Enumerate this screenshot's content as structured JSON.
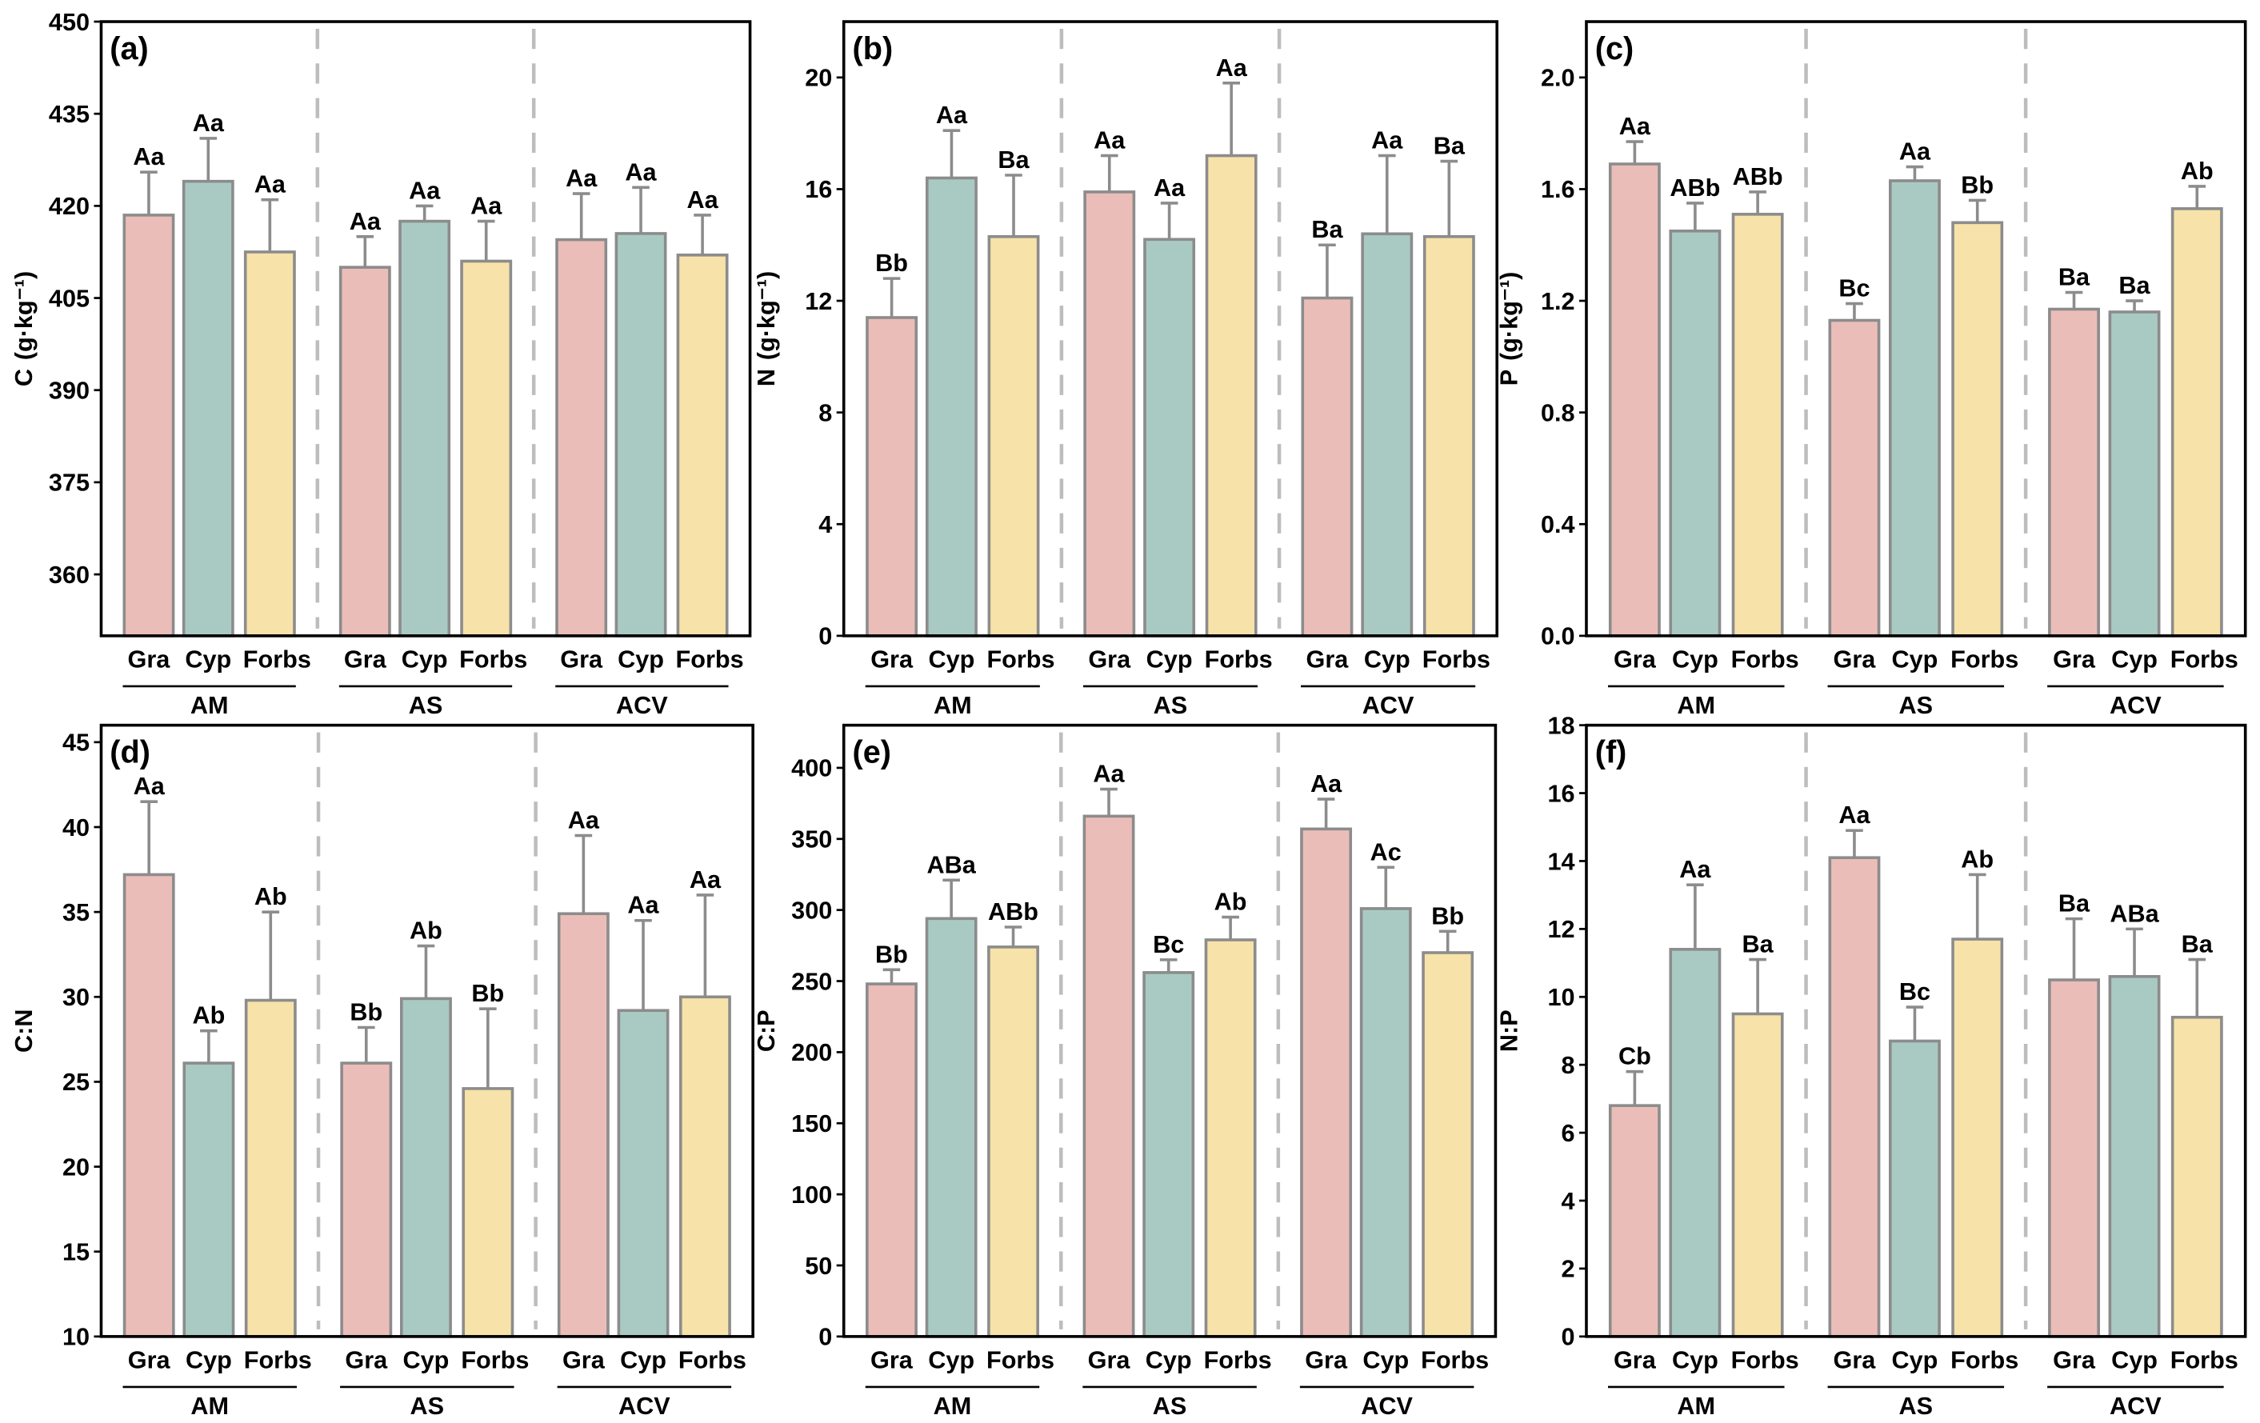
{
  "colors": {
    "Gra": "#ebbdb9",
    "Cyp": "#a9cac3",
    "Forbs": "#f7e2a9",
    "bar_stroke": "#8c8c8c",
    "error": "#8c8c8c",
    "divider": "#bdbdbd"
  },
  "chart_data": [
    {
      "type": "bar",
      "panel": "(a)",
      "ylabel": "C",
      "yunit": "(g·kg⁻¹)",
      "ylim": [
        350,
        450
      ],
      "yticks": [
        "360",
        "375",
        "390",
        "405",
        "420",
        "435",
        "450"
      ],
      "groups": [
        "AM",
        "AS",
        "ACV"
      ],
      "categories": [
        "Gra",
        "Cyp",
        "Forbs"
      ],
      "values": [
        [
          418.5,
          424,
          412.5
        ],
        [
          410,
          417.5,
          411
        ],
        [
          414.5,
          415.5,
          412
        ]
      ],
      "errors_top": [
        [
          425.5,
          431,
          421
        ],
        [
          415,
          420,
          417.5
        ],
        [
          422,
          423,
          418.5
        ]
      ],
      "letters": [
        [
          "Aa",
          "Aa",
          "Aa"
        ],
        [
          "Aa",
          "Aa",
          "Aa"
        ],
        [
          "Aa",
          "Aa",
          "Aa"
        ]
      ]
    },
    {
      "type": "bar",
      "panel": "(b)",
      "ylabel": "N",
      "yunit": "(g·kg⁻¹)",
      "ylim": [
        0,
        22
      ],
      "yticks": [
        "0",
        "4",
        "8",
        "12",
        "16",
        "20"
      ],
      "groups": [
        "AM",
        "AS",
        "ACV"
      ],
      "categories": [
        "Gra",
        "Cyp",
        "Forbs"
      ],
      "values": [
        [
          11.4,
          16.4,
          14.3
        ],
        [
          15.9,
          14.2,
          17.2
        ],
        [
          12.1,
          14.4,
          14.3
        ]
      ],
      "errors_top": [
        [
          12.8,
          18.1,
          16.5
        ],
        [
          17.2,
          15.5,
          19.8
        ],
        [
          14.0,
          17.2,
          17.0
        ]
      ],
      "letters": [
        [
          "Bb",
          "Aa",
          "Ba"
        ],
        [
          "Aa",
          "Aa",
          "Aa"
        ],
        [
          "Ba",
          "Aa",
          "Ba"
        ]
      ]
    },
    {
      "type": "bar",
      "panel": "(c)",
      "ylabel": "P",
      "yunit": "(g·kg⁻¹)",
      "ylim": [
        0,
        2.2
      ],
      "yticks": [
        "0.0",
        "0.4",
        "0.8",
        "1.2",
        "1.6",
        "2.0"
      ],
      "groups": [
        "AM",
        "AS",
        "ACV"
      ],
      "categories": [
        "Gra",
        "Cyp",
        "Forbs"
      ],
      "values": [
        [
          1.69,
          1.45,
          1.51
        ],
        [
          1.13,
          1.63,
          1.48
        ],
        [
          1.17,
          1.16,
          1.53
        ]
      ],
      "errors_top": [
        [
          1.77,
          1.55,
          1.59
        ],
        [
          1.19,
          1.68,
          1.56
        ],
        [
          1.23,
          1.2,
          1.61
        ]
      ],
      "letters": [
        [
          "Aa",
          "ABb",
          "ABb"
        ],
        [
          "Bc",
          "Aa",
          "Bb"
        ],
        [
          "Ba",
          "Ba",
          "Ab"
        ]
      ]
    },
    {
      "type": "bar",
      "panel": "(d)",
      "ylabel": "C:N",
      "yunit": "",
      "ylim": [
        10,
        46
      ],
      "yticks": [
        "10",
        "15",
        "20",
        "25",
        "30",
        "35",
        "40",
        "45"
      ],
      "groups": [
        "AM",
        "AS",
        "ACV"
      ],
      "categories": [
        "Gra",
        "Cyp",
        "Forbs"
      ],
      "values": [
        [
          37.2,
          26.1,
          29.8
        ],
        [
          26.1,
          29.9,
          24.6
        ],
        [
          34.9,
          29.2,
          30.0
        ]
      ],
      "errors_top": [
        [
          41.5,
          28.0,
          35.0
        ],
        [
          28.2,
          33.0,
          29.3
        ],
        [
          39.5,
          34.5,
          36.0
        ]
      ],
      "letters": [
        [
          "Aa",
          "Ab",
          "Ab"
        ],
        [
          "Bb",
          "Ab",
          "Bb"
        ],
        [
          "Aa",
          "Aa",
          "Aa"
        ]
      ]
    },
    {
      "type": "bar",
      "panel": "(e)",
      "ylabel": "C:P",
      "yunit": "",
      "ylim": [
        0,
        430
      ],
      "yticks": [
        "0",
        "50",
        "100",
        "150",
        "200",
        "250",
        "300",
        "350",
        "400"
      ],
      "groups": [
        "AM",
        "AS",
        "ACV"
      ],
      "categories": [
        "Gra",
        "Cyp",
        "Forbs"
      ],
      "values": [
        [
          248,
          294,
          274
        ],
        [
          366,
          256,
          279
        ],
        [
          357,
          301,
          270
        ]
      ],
      "errors_top": [
        [
          258,
          321,
          288
        ],
        [
          385,
          265,
          295
        ],
        [
          378,
          330,
          285
        ]
      ],
      "letters": [
        [
          "Bb",
          "ABa",
          "ABb"
        ],
        [
          "Aa",
          "Bc",
          "Ab"
        ],
        [
          "Aa",
          "Ac",
          "Bb"
        ]
      ]
    },
    {
      "type": "bar",
      "panel": "(f)",
      "ylabel": "N:P",
      "yunit": "",
      "ylim": [
        0,
        18
      ],
      "yticks": [
        "0",
        "2",
        "4",
        "6",
        "8",
        "10",
        "12",
        "14",
        "16",
        "18"
      ],
      "groups": [
        "AM",
        "AS",
        "ACV"
      ],
      "categories": [
        "Gra",
        "Cyp",
        "Forbs"
      ],
      "values": [
        [
          6.8,
          11.4,
          9.5
        ],
        [
          14.1,
          8.7,
          11.7
        ],
        [
          10.5,
          10.6,
          9.4
        ]
      ],
      "errors_top": [
        [
          7.8,
          13.3,
          11.1
        ],
        [
          14.9,
          9.7,
          13.6
        ],
        [
          12.3,
          12.0,
          11.1
        ]
      ],
      "letters": [
        [
          "Cb",
          "Aa",
          "Ba"
        ],
        [
          "Aa",
          "Bc",
          "Ab"
        ],
        [
          "Ba",
          "ABa",
          "Ba"
        ]
      ]
    }
  ]
}
